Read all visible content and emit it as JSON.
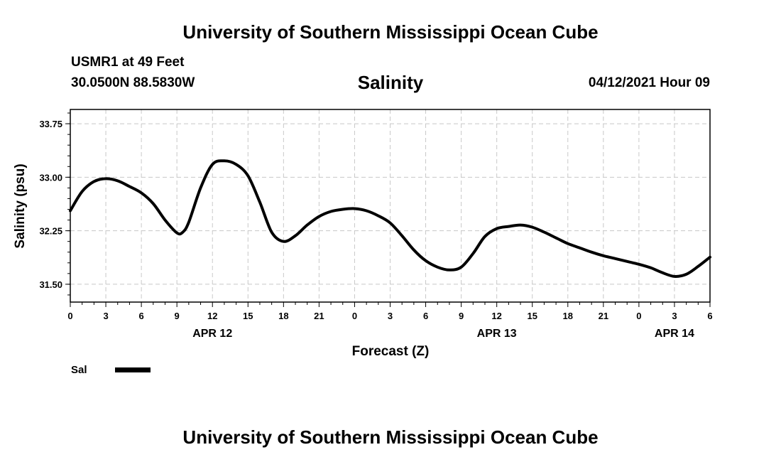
{
  "header": {
    "top_title": "University of Southern Mississippi Ocean Cube",
    "station": "USMR1 at 49 Feet",
    "coords": "30.0500N  88.5830W",
    "timestamp": "04/12/2021 Hour 09",
    "bottom_title": "University of Southern Mississippi Ocean Cube"
  },
  "colors": {
    "line": "#000000",
    "grid": "#c8c8c8"
  },
  "chart_data": {
    "type": "line",
    "title": "Salinity",
    "xlabel": "Forecast (Z)",
    "ylabel": "Salinity (psu)",
    "xlim": [
      0,
      54
    ],
    "ylim": [
      31.25,
      33.95
    ],
    "yticks": [
      31.5,
      32.25,
      33.0,
      33.75
    ],
    "ytick_labels": [
      "31.50",
      "32.25",
      "33.00",
      "33.75"
    ],
    "xtick_hours": [
      0,
      3,
      6,
      9,
      12,
      15,
      18,
      21,
      24,
      27,
      30,
      33,
      36,
      39,
      42,
      45,
      48,
      51,
      54
    ],
    "xtick_labels": [
      "0",
      "3",
      "6",
      "9",
      "12",
      "15",
      "18",
      "21",
      "0",
      "3",
      "6",
      "9",
      "12",
      "15",
      "18",
      "21",
      "0",
      "3",
      "6"
    ],
    "date_labels": [
      {
        "label": "APR 12",
        "hour": 12
      },
      {
        "label": "APR 13",
        "hour": 36
      },
      {
        "label": "APR 14",
        "hour": 51
      }
    ],
    "grid": true,
    "legend": {
      "position": "bottom-left",
      "entries": [
        "Sal"
      ]
    },
    "series": [
      {
        "name": "Sal",
        "x": [
          0,
          1,
          2,
          3,
          4,
          5,
          6,
          7,
          8,
          9,
          9.5,
          10,
          11,
          12,
          13,
          14,
          15,
          16,
          17,
          18,
          19,
          20,
          21,
          22,
          23,
          24,
          25,
          26,
          27,
          28,
          29,
          30,
          31,
          32,
          33,
          34,
          35,
          36,
          37,
          38,
          39,
          40,
          41,
          42,
          43,
          44,
          45,
          46,
          47,
          48,
          49,
          50,
          51,
          52,
          53,
          54
        ],
        "y": [
          32.53,
          32.8,
          32.94,
          32.98,
          32.95,
          32.87,
          32.78,
          32.63,
          32.4,
          32.22,
          32.23,
          32.37,
          32.85,
          33.18,
          33.23,
          33.18,
          33.02,
          32.65,
          32.23,
          32.1,
          32.18,
          32.33,
          32.45,
          32.52,
          32.55,
          32.56,
          32.53,
          32.46,
          32.36,
          32.18,
          31.98,
          31.83,
          31.74,
          31.7,
          31.74,
          31.93,
          32.17,
          32.28,
          32.31,
          32.33,
          32.3,
          32.23,
          32.15,
          32.07,
          32.01,
          31.95,
          31.9,
          31.86,
          31.82,
          31.78,
          31.73,
          31.66,
          31.61,
          31.64,
          31.75,
          31.88
        ]
      }
    ]
  }
}
